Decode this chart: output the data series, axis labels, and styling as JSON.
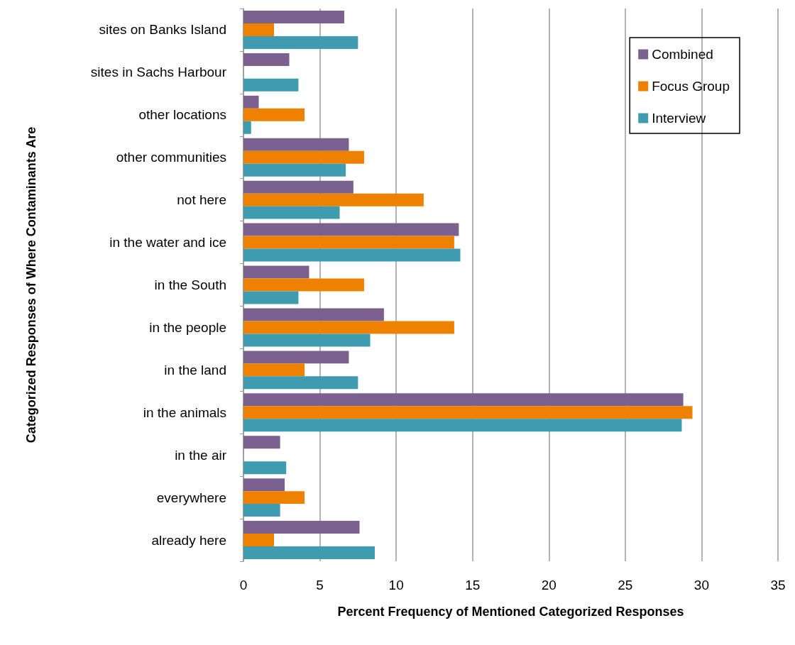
{
  "chart_data": {
    "type": "bar",
    "orientation": "horizontal",
    "xlabel": "Percent Frequency of Mentioned Categorized Responses",
    "ylabel": "Categorized Responses of Where Contaminants Are",
    "categories": [
      "sites on Banks Island",
      "sites in Sachs Harbour",
      "other locations",
      "other communities",
      "not here",
      "in the water and ice",
      "in the South",
      "in the people",
      "in the land",
      "in the animals",
      "in the air",
      "everywhere",
      "already here"
    ],
    "series": [
      {
        "name": "Combined",
        "color": "#7a6190",
        "values": [
          6.6,
          3.0,
          1.0,
          6.9,
          7.2,
          14.1,
          4.3,
          9.2,
          6.9,
          28.8,
          2.4,
          2.7,
          7.6
        ]
      },
      {
        "name": "Focus Group",
        "color": "#ee8100",
        "values": [
          2.0,
          null,
          4.0,
          7.9,
          11.8,
          13.8,
          7.9,
          13.8,
          4.0,
          29.4,
          null,
          4.0,
          2.0
        ]
      },
      {
        "name": "Interview",
        "color": "#3e9bb0",
        "values": [
          7.5,
          3.6,
          0.5,
          6.7,
          6.3,
          14.2,
          3.6,
          8.3,
          7.5,
          28.7,
          2.8,
          2.4,
          8.6
        ]
      }
    ],
    "xlim": [
      0,
      35
    ],
    "xticks": [
      0,
      5,
      10,
      15,
      20,
      25,
      30,
      35
    ],
    "grid": "x",
    "legend": "top right"
  }
}
